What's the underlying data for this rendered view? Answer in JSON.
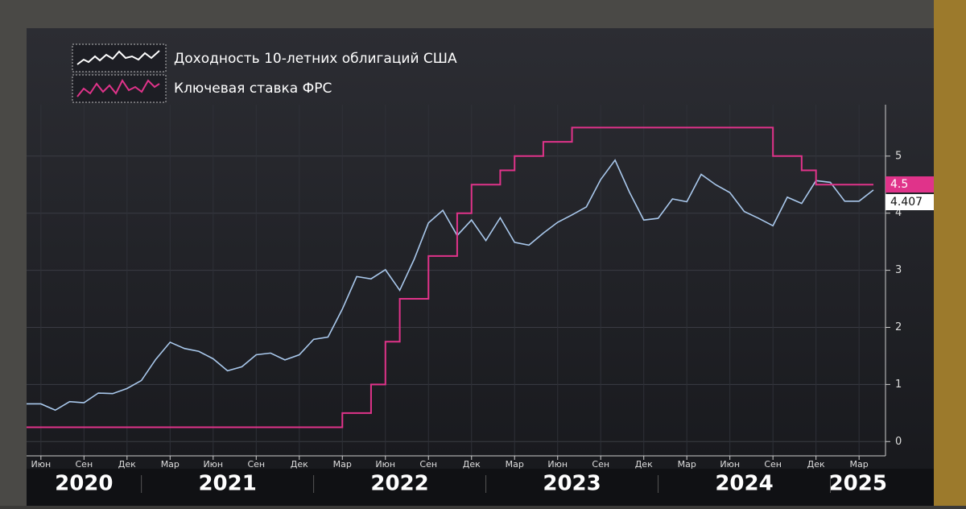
{
  "chart_data": {
    "type": "line",
    "x": [
      "2020-05",
      "2020-06",
      "2020-07",
      "2020-08",
      "2020-09",
      "2020-10",
      "2020-11",
      "2020-12",
      "2021-01",
      "2021-02",
      "2021-03",
      "2021-04",
      "2021-05",
      "2021-06",
      "2021-07",
      "2021-08",
      "2021-09",
      "2021-10",
      "2021-11",
      "2021-12",
      "2022-01",
      "2022-02",
      "2022-03",
      "2022-04",
      "2022-05",
      "2022-06",
      "2022-07",
      "2022-08",
      "2022-09",
      "2022-10",
      "2022-11",
      "2022-12",
      "2023-01",
      "2023-02",
      "2023-03",
      "2023-04",
      "2023-05",
      "2023-06",
      "2023-07",
      "2023-08",
      "2023-09",
      "2023-10",
      "2023-11",
      "2023-12",
      "2024-01",
      "2024-02",
      "2024-03",
      "2024-04",
      "2024-05",
      "2024-06",
      "2024-07",
      "2024-08",
      "2024-09",
      "2024-10",
      "2024-11",
      "2024-12",
      "2025-01",
      "2025-02",
      "2025-03",
      "2025-04"
    ],
    "series": [
      {
        "name": "Доходность 10-летних облигаций США",
        "color": "#a9c8ec",
        "values": [
          0.66,
          0.66,
          0.55,
          0.7,
          0.68,
          0.85,
          0.84,
          0.93,
          1.07,
          1.44,
          1.74,
          1.63,
          1.58,
          1.45,
          1.24,
          1.31,
          1.52,
          1.55,
          1.43,
          1.52,
          1.79,
          1.83,
          2.32,
          2.89,
          2.85,
          3.01,
          2.65,
          3.19,
          3.83,
          4.05,
          3.61,
          3.88,
          3.52,
          3.92,
          3.49,
          3.44,
          3.65,
          3.84,
          3.97,
          4.11,
          4.59,
          4.93,
          4.37,
          3.88,
          3.91,
          4.25,
          4.2,
          4.68,
          4.5,
          4.36,
          4.03,
          3.91,
          3.78,
          4.28,
          4.17,
          4.57,
          4.54,
          4.21,
          4.21,
          4.407
        ]
      },
      {
        "name": "Ключевая ставка ФРС",
        "color": "#e0338a",
        "step": true,
        "values": [
          0.25,
          0.25,
          0.25,
          0.25,
          0.25,
          0.25,
          0.25,
          0.25,
          0.25,
          0.25,
          0.25,
          0.25,
          0.25,
          0.25,
          0.25,
          0.25,
          0.25,
          0.25,
          0.25,
          0.25,
          0.25,
          0.25,
          0.5,
          0.5,
          1.0,
          1.75,
          2.5,
          2.5,
          3.25,
          3.25,
          4.0,
          4.5,
          4.5,
          4.75,
          5.0,
          5.0,
          5.25,
          5.25,
          5.5,
          5.5,
          5.5,
          5.5,
          5.5,
          5.5,
          5.5,
          5.5,
          5.5,
          5.5,
          5.5,
          5.5,
          5.5,
          5.5,
          5.0,
          5.0,
          4.75,
          4.5,
          4.5,
          4.5,
          4.5,
          4.5
        ]
      }
    ],
    "xlim": [
      "2020-05",
      "2025-04"
    ],
    "xticks": [
      {
        "value": "2020-06",
        "label": "Июн"
      },
      {
        "value": "2020-09",
        "label": "Сен"
      },
      {
        "value": "2020-12",
        "label": "Дек"
      },
      {
        "value": "2021-03",
        "label": "Мар"
      },
      {
        "value": "2021-06",
        "label": "Июн"
      },
      {
        "value": "2021-09",
        "label": "Сен"
      },
      {
        "value": "2021-12",
        "label": "Дек"
      },
      {
        "value": "2022-03",
        "label": "Мар"
      },
      {
        "value": "2022-06",
        "label": "Июн"
      },
      {
        "value": "2022-09",
        "label": "Сен"
      },
      {
        "value": "2022-12",
        "label": "Дек"
      },
      {
        "value": "2023-03",
        "label": "Мар"
      },
      {
        "value": "2023-06",
        "label": "Июн"
      },
      {
        "value": "2023-09",
        "label": "Сен"
      },
      {
        "value": "2023-12",
        "label": "Дек"
      },
      {
        "value": "2024-03",
        "label": "Мар"
      },
      {
        "value": "2024-06",
        "label": "Июн"
      },
      {
        "value": "2024-09",
        "label": "Сен"
      },
      {
        "value": "2024-12",
        "label": "Дек"
      },
      {
        "value": "2025-03",
        "label": "Мар"
      }
    ],
    "years": [
      "2020",
      "2021",
      "2022",
      "2023",
      "2024",
      "2025"
    ],
    "ylim": [
      -0.25,
      5.9
    ],
    "yticks": [
      0,
      1,
      2,
      3,
      4,
      5
    ],
    "grid": true
  }
}
